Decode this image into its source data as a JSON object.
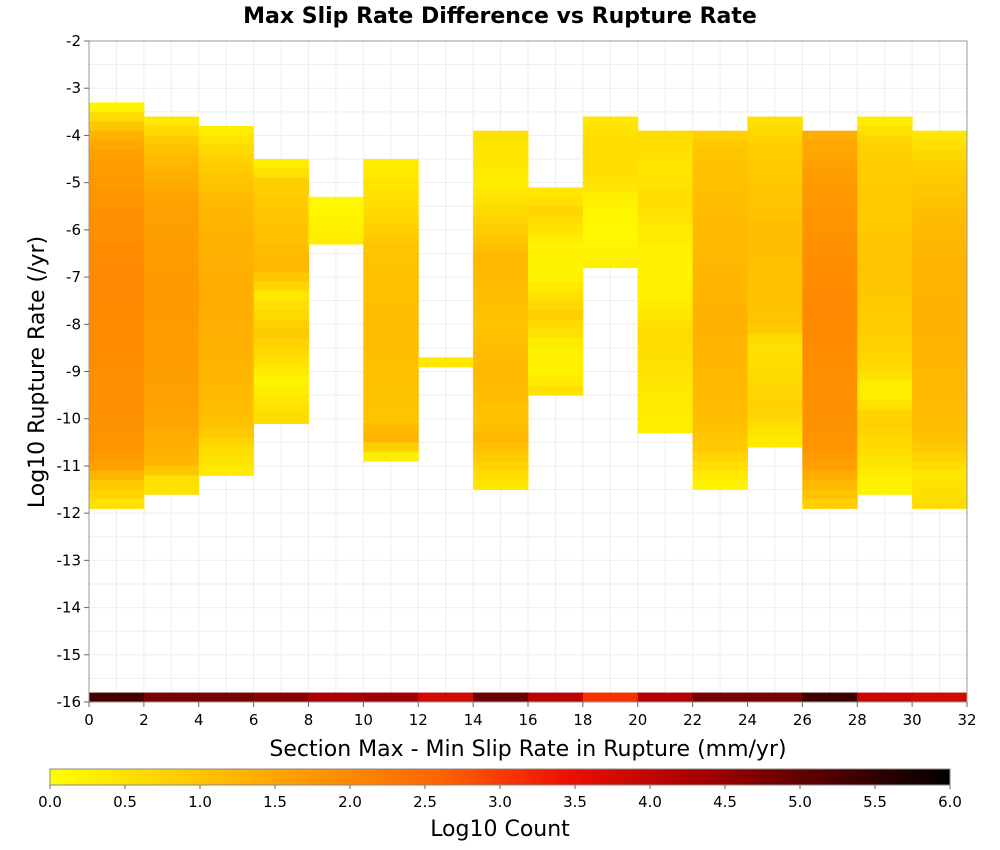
{
  "chart_data": {
    "type": "heatmap",
    "title": "Max Slip Rate Difference vs Rupture Rate",
    "xlabel": "Section Max - Min Slip Rate in Rupture (mm/yr)",
    "ylabel": "Log10 Rupture Rate (/yr)",
    "xlim": [
      0,
      32
    ],
    "ylim": [
      -16,
      -2
    ],
    "x_bin_width": 2,
    "y_bin_height": 0.2,
    "x_ticks": [
      "0",
      "2",
      "4",
      "6",
      "8",
      "10",
      "12",
      "14",
      "16",
      "18",
      "20",
      "22",
      "24",
      "26",
      "28",
      "30",
      "32"
    ],
    "y_ticks": [
      "-2",
      "-3",
      "-4",
      "-5",
      "-6",
      "-7",
      "-8",
      "-9",
      "-10",
      "-11",
      "-12",
      "-13",
      "-14",
      "-15",
      "-16"
    ],
    "grid": true,
    "colorbar": {
      "label": "Log10 Count",
      "range": [
        0,
        6
      ],
      "ticks": [
        "0.0",
        "0.5",
        "1.0",
        "1.5",
        "2.0",
        "2.5",
        "3.0",
        "3.5",
        "4.0",
        "4.5",
        "5.0",
        "5.5",
        "6.0"
      ],
      "stops": [
        "#ffff00",
        "#ffcc00",
        "#ff9900",
        "#ff6600",
        "#ee1100",
        "#aa0000",
        "#550000",
        "#000000"
      ]
    },
    "columns": [
      {
        "x": 1,
        "bands": [
          [
            -3.4,
            0.2
          ],
          [
            -4.0,
            1.3
          ],
          [
            -4.4,
            1.6
          ],
          [
            -5.4,
            1.8
          ],
          [
            -7.0,
            2.0
          ],
          [
            -9.0,
            1.9
          ],
          [
            -10.6,
            1.8
          ],
          [
            -11.0,
            1.6
          ],
          [
            -11.4,
            0.9
          ],
          [
            -11.8,
            0.5
          ]
        ]
      },
      {
        "x": 3,
        "bands": [
          [
            -3.7,
            0.4
          ],
          [
            -4.2,
            1.0
          ],
          [
            -5.4,
            1.6
          ],
          [
            -7.4,
            1.7
          ],
          [
            -9.6,
            1.6
          ],
          [
            -10.4,
            1.4
          ],
          [
            -11.0,
            1.2
          ],
          [
            -11.4,
            0.3
          ],
          [
            -11.6,
            0.7
          ]
        ]
      },
      {
        "x": 5,
        "bands": [
          [
            -3.9,
            0.3
          ],
          [
            -4.4,
            0.7
          ],
          [
            -5.4,
            1.2
          ],
          [
            -7.4,
            1.4
          ],
          [
            -9.4,
            1.2
          ],
          [
            -10.2,
            1.0
          ],
          [
            -10.6,
            0.6
          ],
          [
            -11.2,
            0.3
          ]
        ]
      },
      {
        "x": 7,
        "bands": [
          [
            -4.6,
            0.3
          ],
          [
            -5.0,
            0.8
          ],
          [
            -6.8,
            1.2
          ],
          [
            -7.4,
            0.4
          ],
          [
            -8.2,
            0.9
          ],
          [
            -9.2,
            0.2
          ],
          [
            -10.0,
            0.6
          ]
        ]
      },
      {
        "x": 9,
        "bands": [
          [
            -5.4,
            0.1
          ],
          [
            -6.2,
            0.3
          ]
        ]
      },
      {
        "x": 11,
        "bands": [
          [
            -4.6,
            0.3
          ],
          [
            -5.6,
            0.6
          ],
          [
            -6.4,
            1.0
          ],
          [
            -8.0,
            1.1
          ],
          [
            -10.0,
            1.0
          ],
          [
            -10.4,
            1.3
          ],
          [
            -10.8,
            0.3
          ]
        ]
      },
      {
        "x": 13,
        "bands": [
          [
            -8.8,
            0.4
          ]
        ]
      },
      {
        "x": 15,
        "bands": [
          [
            -4.0,
            0.5
          ],
          [
            -5.0,
            0.3
          ],
          [
            -5.6,
            0.6
          ],
          [
            -6.6,
            1.2
          ],
          [
            -8.0,
            1.0
          ],
          [
            -9.0,
            1.2
          ],
          [
            -10.0,
            1.0
          ],
          [
            -10.4,
            1.2
          ],
          [
            -11.4,
            0.4
          ]
        ]
      },
      {
        "x": 17,
        "bands": [
          [
            -5.2,
            0.4
          ],
          [
            -5.6,
            0.7
          ],
          [
            -6.4,
            0.2
          ],
          [
            -7.0,
            0.2
          ],
          [
            -7.4,
            0.5
          ],
          [
            -7.8,
            0.8
          ],
          [
            -8.4,
            0.3
          ],
          [
            -9.0,
            0.2
          ],
          [
            -9.4,
            0.5
          ]
        ]
      },
      {
        "x": 19,
        "bands": [
          [
            -3.7,
            0.4
          ],
          [
            -4.2,
            0.6
          ],
          [
            -5.0,
            0.5
          ],
          [
            -5.4,
            0.2
          ],
          [
            -6.0,
            0.1
          ],
          [
            -6.4,
            0.2
          ],
          [
            -6.8,
            0.3
          ]
        ]
      },
      {
        "x": 21,
        "bands": [
          [
            -4.0,
            0.6
          ],
          [
            -4.8,
            0.4
          ],
          [
            -5.4,
            0.6
          ],
          [
            -6.2,
            0.3
          ],
          [
            -6.8,
            0.2
          ],
          [
            -7.6,
            0.3
          ],
          [
            -8.2,
            0.6
          ],
          [
            -9.4,
            0.4
          ],
          [
            -10.2,
            0.3
          ]
        ]
      },
      {
        "x": 23,
        "bands": [
          [
            -4.0,
            0.8
          ],
          [
            -4.4,
            1.0
          ],
          [
            -6.4,
            1.2
          ],
          [
            -8.0,
            1.3
          ],
          [
            -10.0,
            1.1
          ],
          [
            -10.6,
            0.9
          ],
          [
            -11.4,
            0.2
          ]
        ]
      },
      {
        "x": 25,
        "bands": [
          [
            -3.7,
            0.5
          ],
          [
            -4.2,
            0.8
          ],
          [
            -6.0,
            1.1
          ],
          [
            -8.0,
            1.0
          ],
          [
            -8.4,
            0.5
          ],
          [
            -9.0,
            0.6
          ],
          [
            -9.8,
            0.8
          ],
          [
            -10.2,
            0.5
          ],
          [
            -10.6,
            0.3
          ]
        ]
      },
      {
        "x": 27,
        "bands": [
          [
            -4.0,
            1.4
          ],
          [
            -5.0,
            1.7
          ],
          [
            -7.6,
            2.0
          ],
          [
            -10.6,
            1.8
          ],
          [
            -11.0,
            1.6
          ],
          [
            -11.4,
            1.2
          ],
          [
            -11.8,
            0.8
          ]
        ]
      },
      {
        "x": 29,
        "bands": [
          [
            -3.7,
            0.3
          ],
          [
            -4.2,
            0.8
          ],
          [
            -6.8,
            1.0
          ],
          [
            -8.4,
            0.8
          ],
          [
            -9.0,
            0.6
          ],
          [
            -9.4,
            0.2
          ],
          [
            -10.0,
            0.8
          ],
          [
            -10.6,
            0.6
          ],
          [
            -11.2,
            0.3
          ],
          [
            -11.6,
            0.2
          ]
        ]
      },
      {
        "x": 31,
        "bands": [
          [
            -4.0,
            0.4
          ],
          [
            -4.6,
            0.8
          ],
          [
            -6.0,
            1.2
          ],
          [
            -8.0,
            1.3
          ],
          [
            -9.0,
            1.2
          ],
          [
            -10.2,
            1.1
          ],
          [
            -10.6,
            0.9
          ],
          [
            -11.2,
            0.4
          ],
          [
            -11.8,
            0.6
          ]
        ]
      }
    ],
    "bottom_row": {
      "y": -15.9,
      "values": [
        5.3,
        4.8,
        4.8,
        4.6,
        4.3,
        4.4,
        3.8,
        4.9,
        4.1,
        3.1,
        4.2,
        4.8,
        4.8,
        5.4,
        3.9,
        3.8
      ]
    }
  }
}
